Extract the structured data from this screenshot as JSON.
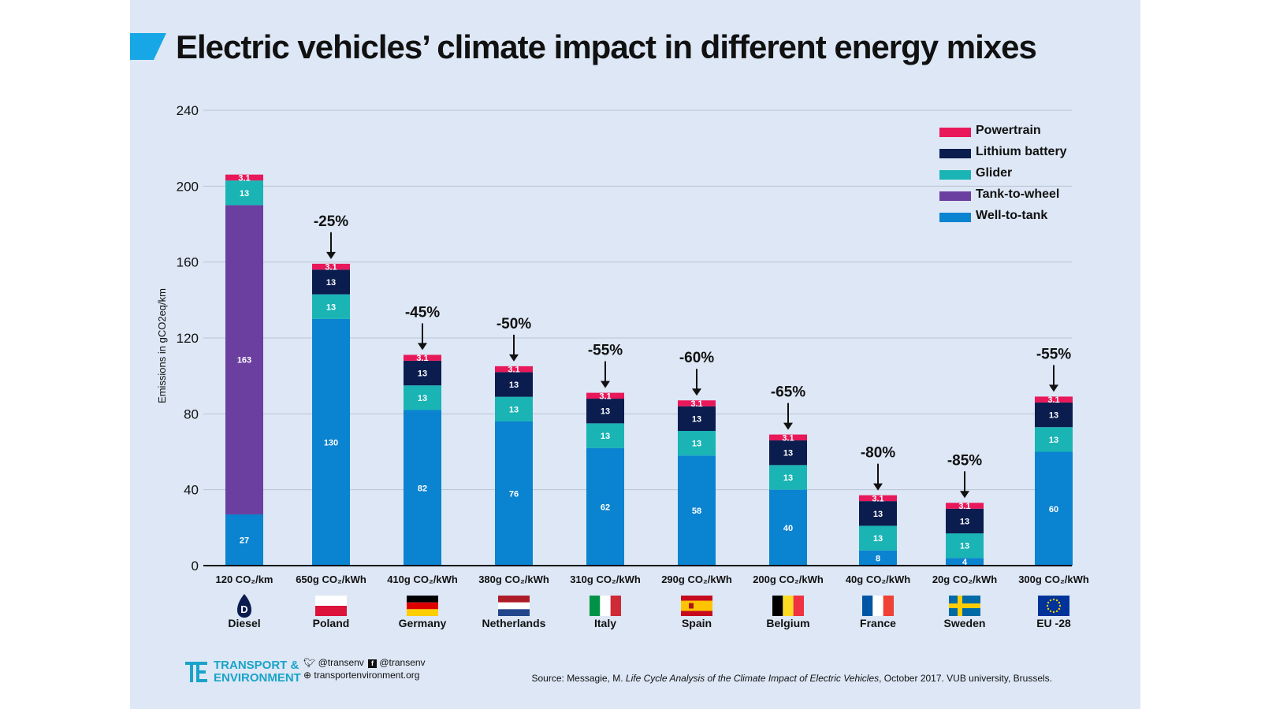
{
  "title": "Electric vehicles’ climate impact in different energy mixes",
  "colors": {
    "panel": "#dde7f5",
    "accent": "#17a7e6",
    "powertrain": "#e8185a",
    "battery": "#0b1c4f",
    "glider": "#1ab4b5",
    "tank_to_wheel": "#6b3fa0",
    "well_to_tank": "#0a83d0"
  },
  "chart_data": {
    "type": "bar",
    "stacked": true,
    "ylabel": "Emissions in gCO2eq/km",
    "ylim": [
      0,
      240
    ],
    "yticks": [
      0,
      40,
      80,
      120,
      160,
      200,
      240
    ],
    "grid": true,
    "legend_position": "top-right",
    "categories": [
      "Diesel",
      "Poland",
      "Germany",
      "Netherlands",
      "Italy",
      "Spain",
      "Belgium",
      "France",
      "Sweden",
      "EU -28"
    ],
    "x_sublabels": [
      "120 CO₂/km",
      "650g CO₂/kWh",
      "410g CO₂/kWh",
      "380g CO₂/kWh",
      "310g CO₂/kWh",
      "290g CO₂/kWh",
      "200g CO₂/kWh",
      "40g CO₂/kWh",
      "20g CO₂/kWh",
      "300g CO₂/kWh"
    ],
    "reductions": [
      "",
      "-25%",
      "-45%",
      "-50%",
      "-55%",
      "-60%",
      "-65%",
      "-80%",
      "-85%",
      "-55%"
    ],
    "series": [
      {
        "name": "Well-to-tank",
        "color_key": "well_to_tank",
        "values": [
          27,
          130,
          82,
          76,
          62,
          58,
          40,
          8,
          4,
          60
        ],
        "labels": [
          "27",
          "130",
          "82",
          "76",
          "62",
          "58",
          "40",
          "8",
          "4",
          "60"
        ]
      },
      {
        "name": "Tank-to-wheel",
        "color_key": "tank_to_wheel",
        "values": [
          163,
          0,
          0,
          0,
          0,
          0,
          0,
          0,
          0,
          0
        ],
        "labels": [
          "163",
          "",
          "",
          "",
          "",
          "",
          "",
          "",
          "",
          ""
        ]
      },
      {
        "name": "Glider",
        "color_key": "glider",
        "values": [
          13,
          13,
          13,
          13,
          13,
          13,
          13,
          13,
          13,
          13
        ],
        "labels": [
          "13",
          "13",
          "13",
          "13",
          "13",
          "13",
          "13",
          "13",
          "13",
          "13"
        ]
      },
      {
        "name": "Lithium battery",
        "color_key": "battery",
        "values": [
          0,
          13,
          13,
          13,
          13,
          13,
          13,
          13,
          13,
          13
        ],
        "labels": [
          "",
          "13",
          "13",
          "13",
          "13",
          "13",
          "13",
          "13",
          "13",
          "13"
        ]
      },
      {
        "name": "Powertrain",
        "color_key": "powertrain",
        "values": [
          3.1,
          3.1,
          3.1,
          3.1,
          3.1,
          3.1,
          3.1,
          3.1,
          3.1,
          3.1
        ],
        "labels": [
          "3.1",
          "3.1",
          "3.1",
          "3.1",
          "3.1",
          "3.1",
          "3.1",
          "3.1",
          "3.1",
          "3.1"
        ]
      }
    ],
    "legend_order": [
      "Powertrain",
      "Lithium battery",
      "Glider",
      "Tank-to-wheel",
      "Well-to-tank"
    ],
    "diesel_badge": "D"
  },
  "footer": {
    "brand_line1": "TRANSPORT &",
    "brand_line2": "ENVIRONMENT",
    "twitter": "@transenv",
    "facebook": "@transenv",
    "website": "transportenvironment.org",
    "source_prefix": "Source: Messagie, M. ",
    "source_title": "Life Cycle Analysis of the Climate Impact of Electric Vehicles",
    "source_suffix": ", October 2017. VUB university, Brussels."
  }
}
